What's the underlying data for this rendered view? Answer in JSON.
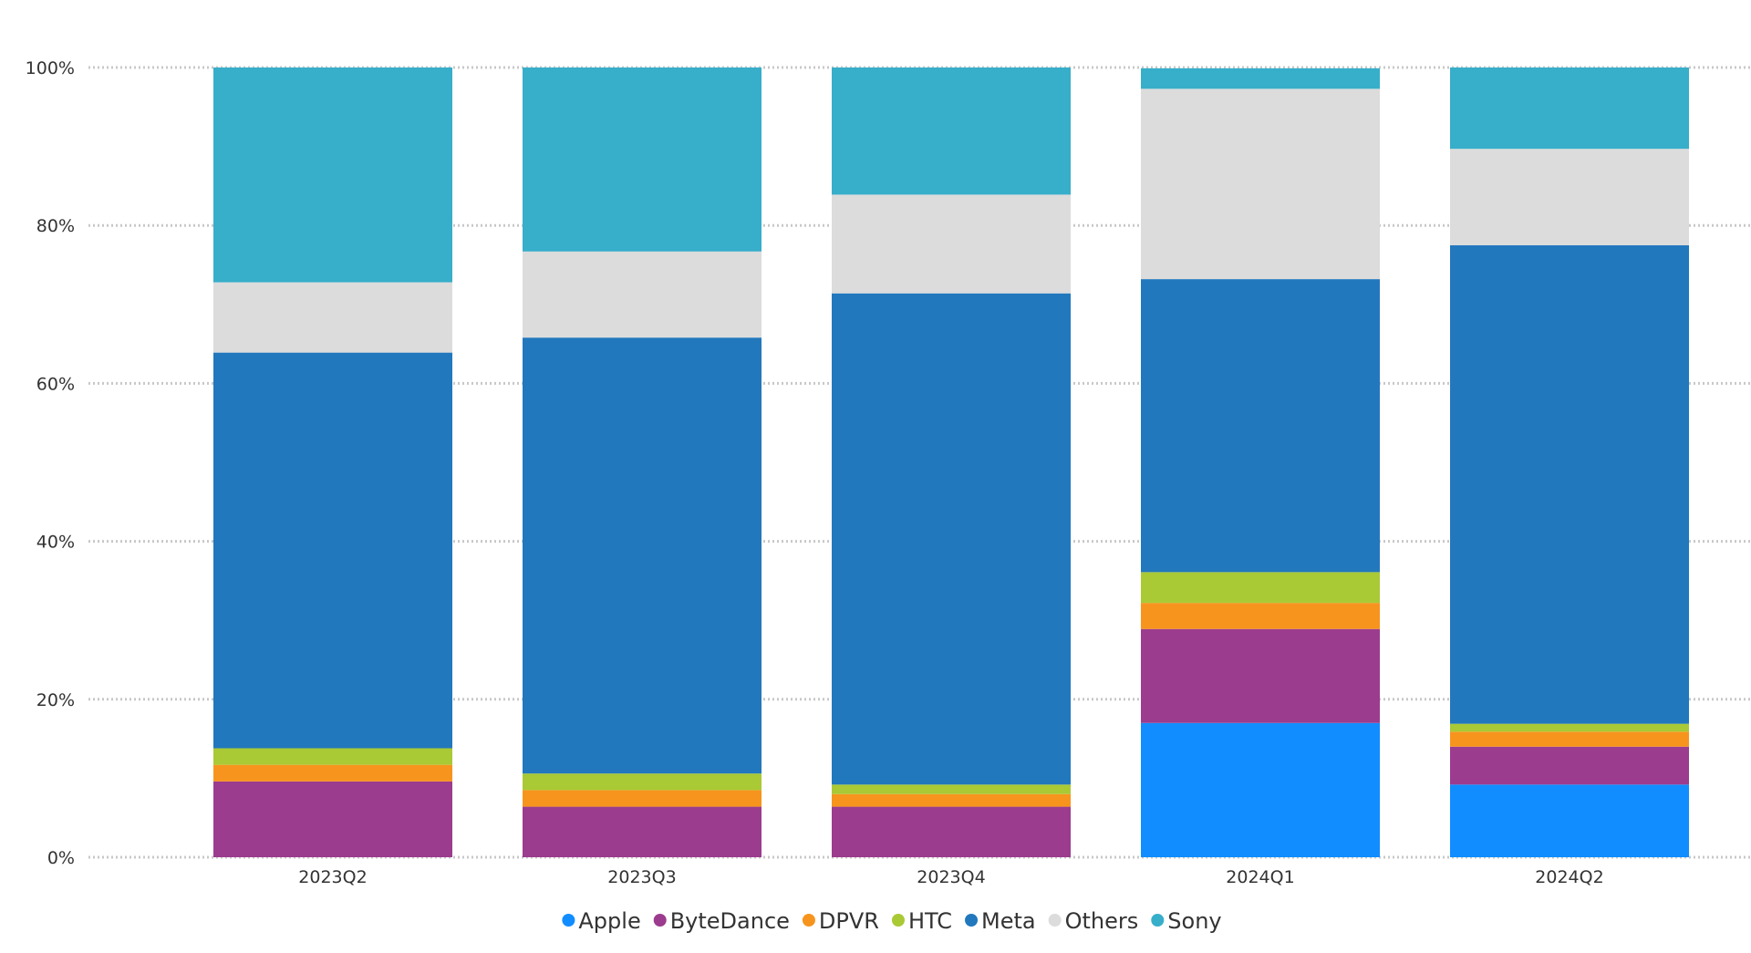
{
  "chart_data": {
    "type": "bar",
    "stacked": true,
    "percent_stacked": true,
    "title": "",
    "xlabel": "",
    "ylabel": "",
    "ylim": [
      0,
      100
    ],
    "y_ticks": [
      "0%",
      "20%",
      "40%",
      "60%",
      "80%",
      "100%"
    ],
    "y_tick_values": [
      0,
      20,
      40,
      60,
      80,
      100
    ],
    "grid": true,
    "legend_position": "bottom-center",
    "categories": [
      "2023Q2",
      "2023Q3",
      "2023Q4",
      "2024Q1",
      "2024Q2"
    ],
    "series": [
      {
        "name": "Apple",
        "color": "#118DFF",
        "values": [
          0.0,
          0.0,
          0.0,
          17.0,
          9.2
        ]
      },
      {
        "name": "ByteDance",
        "color": "#9B3C8E",
        "values": [
          9.6,
          6.4,
          6.4,
          11.9,
          4.8
        ]
      },
      {
        "name": "DPVR",
        "color": "#F7941D",
        "values": [
          2.1,
          2.1,
          1.6,
          3.3,
          1.9
        ]
      },
      {
        "name": "HTC",
        "color": "#A9C935",
        "values": [
          2.1,
          2.1,
          1.2,
          3.9,
          1.0
        ]
      },
      {
        "name": "Meta",
        "color": "#2278BD",
        "values": [
          50.1,
          55.2,
          62.2,
          37.1,
          60.6
        ]
      },
      {
        "name": "Others",
        "color": "#DCDCDC",
        "values": [
          8.9,
          10.9,
          12.5,
          24.1,
          12.2
        ]
      },
      {
        "name": "Sony",
        "color": "#37AECA",
        "values": [
          27.2,
          23.3,
          16.1,
          2.6,
          10.3
        ]
      }
    ]
  }
}
